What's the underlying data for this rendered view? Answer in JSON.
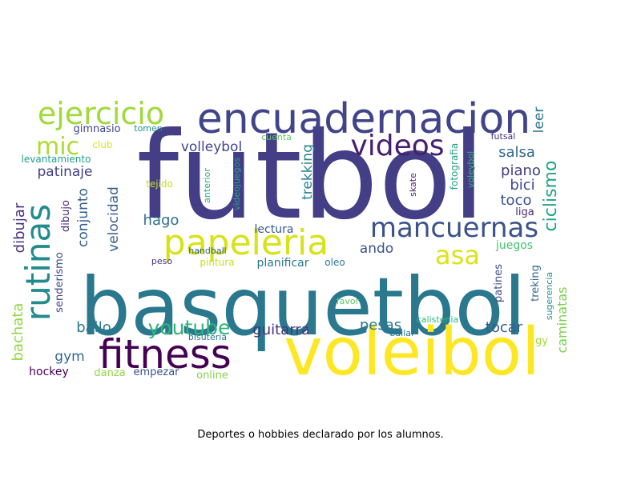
{
  "caption": "Deportes o hobbies declarado por los alumnos.",
  "chart_data": {
    "type": "wordcloud",
    "title": "",
    "grid": false,
    "legend": "none",
    "palette": "viridis",
    "words": [
      {
        "text": "futbol",
        "weight": 100,
        "color": "#433e85"
      },
      {
        "text": "basquetbol",
        "weight": 78,
        "color": "#2a788e"
      },
      {
        "text": "voleibol",
        "weight": 66,
        "color": "#fde725"
      },
      {
        "text": "fitness",
        "weight": 42,
        "color": "#440154"
      },
      {
        "text": "encuadernacion",
        "weight": 44,
        "color": "#414487"
      },
      {
        "text": "papeleria",
        "weight": 36,
        "color": "#d8e219"
      },
      {
        "text": "rutinas",
        "weight": 34,
        "color": "#228b8d"
      },
      {
        "text": "ejercicio",
        "weight": 30,
        "color": "#a0da39"
      },
      {
        "text": "videos",
        "weight": 28,
        "color": "#481f70"
      },
      {
        "text": "mancuernas",
        "weight": 27,
        "color": "#3b528b"
      },
      {
        "text": "mic",
        "weight": 24,
        "color": "#addc30"
      },
      {
        "text": "asa",
        "weight": 26,
        "color": "#dde318"
      },
      {
        "text": "youtube",
        "weight": 20,
        "color": "#2fb47c"
      },
      {
        "text": "ciclismo",
        "weight": 18,
        "color": "#20a486"
      },
      {
        "text": "dibujar",
        "weight": 16,
        "color": "#46327e"
      },
      {
        "text": "bachata",
        "weight": 16,
        "color": "#90d743"
      },
      {
        "text": "guitarra",
        "weight": 16,
        "color": "#46327e"
      },
      {
        "text": "trekking",
        "weight": 14,
        "color": "#25858e"
      },
      {
        "text": "volleybol",
        "weight": 14,
        "color": "#414487"
      },
      {
        "text": "patinaje",
        "weight": 14,
        "color": "#433e85"
      },
      {
        "text": "velocidad",
        "weight": 14,
        "color": "#355f8d"
      },
      {
        "text": "conjunto",
        "weight": 14,
        "color": "#355f8d"
      },
      {
        "text": "hago",
        "weight": 15,
        "color": "#2c728e"
      },
      {
        "text": "salsa",
        "weight": 15,
        "color": "#31688e"
      },
      {
        "text": "piano",
        "weight": 15,
        "color": "#433e85"
      },
      {
        "text": "bici",
        "weight": 15,
        "color": "#3e4989"
      },
      {
        "text": "toco",
        "weight": 15,
        "color": "#3b528b"
      },
      {
        "text": "leer",
        "weight": 14,
        "color": "#2a788e"
      },
      {
        "text": "pesas",
        "weight": 15,
        "color": "#2a788e"
      },
      {
        "text": "tocar",
        "weight": 15,
        "color": "#355f8d"
      },
      {
        "text": "bailo",
        "weight": 15,
        "color": "#2a788e"
      },
      {
        "text": "gym",
        "weight": 15,
        "color": "#31688e"
      },
      {
        "text": "ando",
        "weight": 14,
        "color": "#3b528b"
      },
      {
        "text": "caminatas",
        "weight": 13,
        "color": "#7ad151"
      },
      {
        "text": "lectura",
        "weight": 12,
        "color": "#38588c"
      },
      {
        "text": "hockey",
        "weight": 12,
        "color": "#440154"
      },
      {
        "text": "danza",
        "weight": 11,
        "color": "#90d743"
      },
      {
        "text": "empezar",
        "weight": 11,
        "color": "#3b528b"
      },
      {
        "text": "online",
        "weight": 11,
        "color": "#84d44b"
      },
      {
        "text": "planificar",
        "weight": 11,
        "color": "#2a788e"
      },
      {
        "text": "oleo",
        "weight": 10,
        "color": "#2a788e"
      },
      {
        "text": "peso",
        "weight": 9,
        "color": "#46327e"
      },
      {
        "text": "pintura",
        "weight": 10,
        "color": "#c8e020"
      },
      {
        "text": "dibujo",
        "weight": 11,
        "color": "#482878"
      },
      {
        "text": "senderismo",
        "weight": 11,
        "color": "#3e4989"
      },
      {
        "text": "gimnasio",
        "weight": 11,
        "color": "#404688"
      },
      {
        "text": "tomen",
        "weight": 9,
        "color": "#21918c"
      },
      {
        "text": "club",
        "weight": 10,
        "color": "#dde318"
      },
      {
        "text": "levantamiento",
        "weight": 10,
        "color": "#1f9e89"
      },
      {
        "text": "tejido",
        "weight": 10,
        "color": "#c8e020"
      },
      {
        "text": "anterior",
        "weight": 9,
        "color": "#29af7f"
      },
      {
        "text": "videojuegos",
        "weight": 9,
        "color": "#22a884"
      },
      {
        "text": "cuenta",
        "weight": 9,
        "color": "#5ec962"
      },
      {
        "text": "handball",
        "weight": 9,
        "color": "#355f8d"
      },
      {
        "text": "skate",
        "weight": 9,
        "color": "#482878"
      },
      {
        "text": "fotografia",
        "weight": 10,
        "color": "#1f9e89"
      },
      {
        "text": "voleybol",
        "weight": 9,
        "color": "#35b779"
      },
      {
        "text": "futsal",
        "weight": 9,
        "color": "#46327e"
      },
      {
        "text": "liga",
        "weight": 10,
        "color": "#482878"
      },
      {
        "text": "juegos",
        "weight": 10,
        "color": "#44bf70"
      },
      {
        "text": "patines",
        "weight": 11,
        "color": "#3e4989"
      },
      {
        "text": "treking",
        "weight": 11,
        "color": "#31688e"
      },
      {
        "text": "sugerencia",
        "weight": 9,
        "color": "#21918c"
      },
      {
        "text": "favor",
        "weight": 9,
        "color": "#5ec962"
      },
      {
        "text": "calistenia",
        "weight": 9,
        "color": "#35b779"
      },
      {
        "text": "bailar",
        "weight": 9,
        "color": "#2c728e"
      },
      {
        "text": "bisuteria",
        "weight": 9,
        "color": "#2a788e"
      },
      {
        "text": "gy",
        "weight": 10,
        "color": "#a0da39"
      }
    ]
  }
}
